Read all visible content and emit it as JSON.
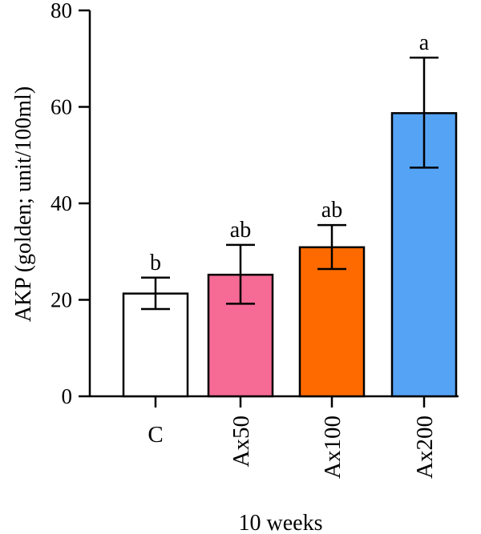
{
  "chart_data": {
    "type": "bar",
    "title": "",
    "xlabel": "10 weeks",
    "ylabel": "AKP (golden; unit/100ml)",
    "ylim": [
      0,
      80
    ],
    "yticks": [
      "0",
      "20",
      "40",
      "60",
      "80"
    ],
    "categories": [
      "C",
      "Ax50",
      "Ax100",
      "Ax200"
    ],
    "values": [
      21.3,
      25.2,
      30.9,
      58.7
    ],
    "error_low": [
      18.1,
      19.2,
      26.4,
      47.4
    ],
    "error_high": [
      24.6,
      31.4,
      35.5,
      70.2
    ],
    "significance": [
      "b",
      "ab",
      "ab",
      "a"
    ],
    "colors": [
      "#ffffff",
      "#f56b95",
      "#ff6a00",
      "#55a3f5"
    ],
    "grid": false,
    "legend": "none"
  }
}
